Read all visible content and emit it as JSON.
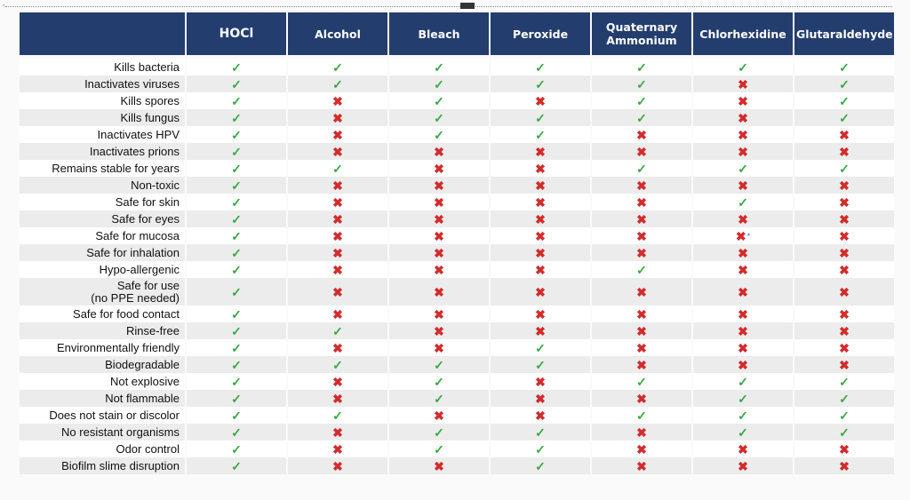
{
  "colors": {
    "header_bg": "#233d6e",
    "check": "#3aa845",
    "cross": "#d42b2b",
    "asterisk": "#3b5bd6"
  },
  "icons": {
    "yes": "checkmark-icon",
    "no": "cross-icon"
  },
  "columns": [
    "HOCl",
    "Alcohol",
    "Bleach",
    "Peroxide",
    "Quaternary Ammonium",
    "Chlorhexidine",
    "Glutaraldehyde"
  ],
  "rows": [
    {
      "label": "Kills bacteria",
      "values": [
        "yes",
        "yes",
        "yes",
        "yes",
        "yes",
        "yes",
        "yes"
      ]
    },
    {
      "label": "Inactivates viruses",
      "values": [
        "yes",
        "yes",
        "yes",
        "yes",
        "yes",
        "no",
        "yes"
      ]
    },
    {
      "label": "Kills spores",
      "values": [
        "yes",
        "no",
        "yes",
        "no",
        "yes",
        "no",
        "yes"
      ]
    },
    {
      "label": "Kills fungus",
      "values": [
        "yes",
        "no",
        "yes",
        "yes",
        "yes",
        "no",
        "yes"
      ]
    },
    {
      "label": "Inactivates HPV",
      "values": [
        "yes",
        "no",
        "yes",
        "yes",
        "no",
        "no",
        "no"
      ]
    },
    {
      "label": "Inactivates prions",
      "values": [
        "yes",
        "no",
        "no",
        "no",
        "no",
        "no",
        "no"
      ]
    },
    {
      "label": "Remains stable for years",
      "values": [
        "yes",
        "yes",
        "no",
        "no",
        "yes",
        "yes",
        "yes"
      ]
    },
    {
      "label": "Non-toxic",
      "values": [
        "yes",
        "no",
        "no",
        "no",
        "no",
        "no",
        "no"
      ]
    },
    {
      "label": "Safe for skin",
      "values": [
        "yes",
        "no",
        "no",
        "no",
        "no",
        "yes",
        "no"
      ]
    },
    {
      "label": "Safe for eyes",
      "values": [
        "yes",
        "no",
        "no",
        "no",
        "no",
        "no",
        "no"
      ]
    },
    {
      "label": "Safe for mucosa",
      "values": [
        "yes",
        "no",
        "no",
        "no",
        "no",
        "no",
        "no"
      ],
      "note_col": 5,
      "note": "*"
    },
    {
      "label": "Safe for inhalation",
      "values": [
        "yes",
        "no",
        "no",
        "no",
        "no",
        "no",
        "no"
      ]
    },
    {
      "label": "Hypo-allergenic",
      "values": [
        "yes",
        "no",
        "no",
        "no",
        "yes",
        "no",
        "no"
      ]
    },
    {
      "label": "Safe for use\n(no PPE needed)",
      "values": [
        "yes",
        "no",
        "no",
        "no",
        "no",
        "no",
        "no"
      ],
      "tall": true
    },
    {
      "label": "Safe for food contact",
      "values": [
        "yes",
        "no",
        "no",
        "no",
        "no",
        "no",
        "no"
      ]
    },
    {
      "label": "Rinse-free",
      "values": [
        "yes",
        "yes",
        "no",
        "no",
        "no",
        "no",
        "no"
      ]
    },
    {
      "label": "Environmentally friendly",
      "values": [
        "yes",
        "no",
        "no",
        "yes",
        "no",
        "no",
        "no"
      ]
    },
    {
      "label": "Biodegradable",
      "values": [
        "yes",
        "yes",
        "yes",
        "yes",
        "no",
        "no",
        "no"
      ]
    },
    {
      "label": "Not explosive",
      "values": [
        "yes",
        "no",
        "yes",
        "no",
        "yes",
        "yes",
        "yes"
      ]
    },
    {
      "label": "Not flammable",
      "values": [
        "yes",
        "no",
        "yes",
        "no",
        "no",
        "yes",
        "yes"
      ]
    },
    {
      "label": "Does not stain or discolor",
      "values": [
        "yes",
        "yes",
        "no",
        "no",
        "yes",
        "yes",
        "yes"
      ]
    },
    {
      "label": "No resistant organisms",
      "values": [
        "yes",
        "no",
        "yes",
        "yes",
        "no",
        "yes",
        "yes"
      ]
    },
    {
      "label": "Odor control",
      "values": [
        "yes",
        "no",
        "yes",
        "yes",
        "no",
        "no",
        "no"
      ]
    },
    {
      "label": "Biofilm slime disruption",
      "values": [
        "yes",
        "no",
        "no",
        "yes",
        "no",
        "no",
        "no"
      ]
    }
  ]
}
